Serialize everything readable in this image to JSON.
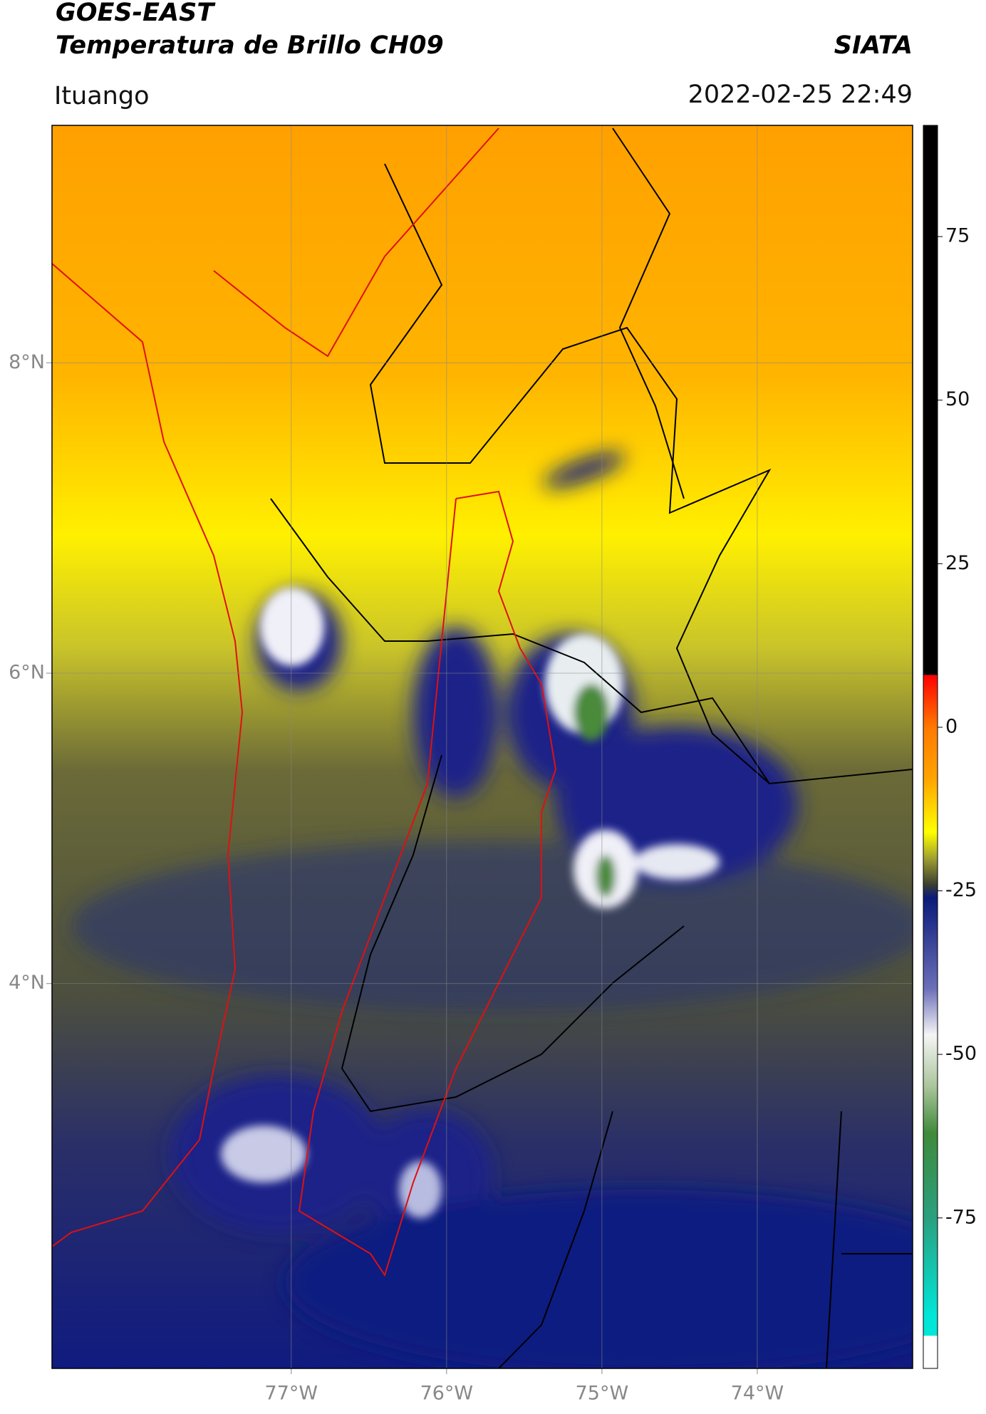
{
  "header": {
    "title": "GOES-EAST",
    "subtitle": "Temperatura de Brillo CH09",
    "source": "SIATA",
    "location": "Ituango",
    "datetime": "2022-02-25 22:49"
  },
  "map": {
    "xlim": [
      -78.54,
      -73.0
    ],
    "ylim": [
      1.52,
      9.53
    ],
    "xticks": [
      {
        "value": -77,
        "label": "77°W"
      },
      {
        "value": -76,
        "label": "76°W"
      },
      {
        "value": -75,
        "label": "75°W"
      },
      {
        "value": -74,
        "label": "74°W"
      }
    ],
    "yticks": [
      {
        "value": 8,
        "label": "8°N"
      },
      {
        "value": 6,
        "label": "6°N"
      },
      {
        "value": 4,
        "label": "4°N"
      }
    ],
    "grid": true
  },
  "colorbar": {
    "lim": [
      -98,
      92
    ],
    "ticks": [
      75,
      50,
      25,
      0,
      -25,
      -50,
      -75
    ],
    "stops": [
      {
        "value": 92,
        "color": "#000000"
      },
      {
        "value": 8,
        "color": "#000000"
      },
      {
        "value": 8,
        "color": "#ff0000"
      },
      {
        "value": 0,
        "color": "#ff7a00"
      },
      {
        "value": -8,
        "color": "#ffa500"
      },
      {
        "value": -16,
        "color": "#ffff00"
      },
      {
        "value": -20,
        "color": "#a0a030"
      },
      {
        "value": -24,
        "color": "#3b3f30"
      },
      {
        "value": -26,
        "color": "#0a1a7a"
      },
      {
        "value": -40,
        "color": "#6c70b8"
      },
      {
        "value": -47,
        "color": "#f5f5f5"
      },
      {
        "value": -55,
        "color": "#a9c49a"
      },
      {
        "value": -62,
        "color": "#3f8a3a"
      },
      {
        "value": -75,
        "color": "#2aa080"
      },
      {
        "value": -90,
        "color": "#00e6d8"
      },
      {
        "value": -93,
        "color": "#00e6d8"
      },
      {
        "value": -93,
        "color": "#ffffff"
      },
      {
        "value": -98,
        "color": "#ffffff"
      }
    ]
  }
}
